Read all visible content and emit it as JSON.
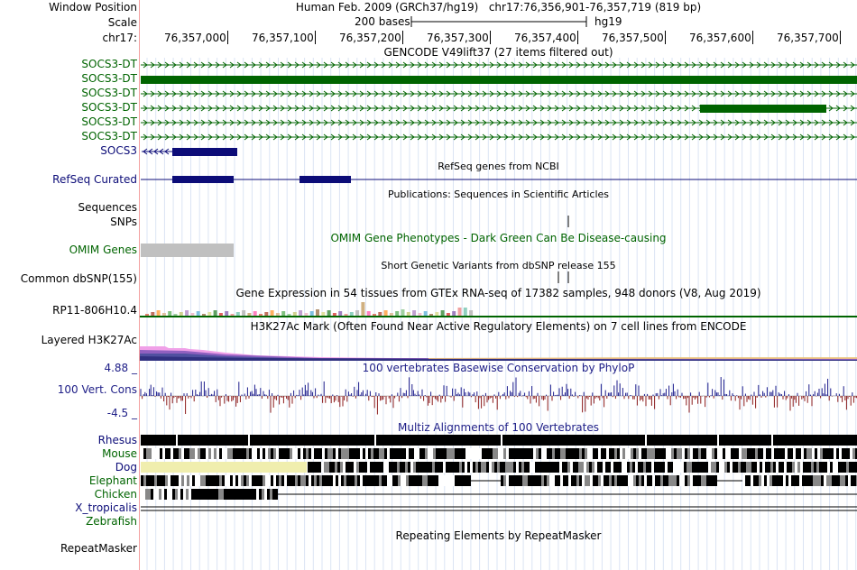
{
  "header": {
    "window_position_label": "Window Position",
    "assembly_text": "Human Feb. 2009 (GRCh37/hg19)",
    "position_text": "chr17:76,356,901-76,357,719 (819 bp)",
    "scale_label": "Scale",
    "scale_text": "200 bases",
    "db_text": "hg19",
    "chrom_label": "chr17:",
    "ticks": [
      "76,357,000",
      "76,357,100",
      "76,357,200",
      "76,357,300",
      "76,357,400",
      "76,357,500",
      "76,357,600",
      "76,357,700"
    ]
  },
  "tracks": {
    "gencode_title": "GENCODE V49lift37 (27 items filtered out)",
    "gencode_items": [
      "SOCS3-DT",
      "SOCS3-DT",
      "SOCS3-DT",
      "SOCS3-DT",
      "SOCS3-DT",
      "SOCS3-DT",
      "SOCS3"
    ],
    "refseq_title": "RefSeq genes from NCBI",
    "refseq_label": "RefSeq Curated",
    "publications_title": "Publications: Sequences in Scientific Articles",
    "sequences_label": "Sequences",
    "snps_label": "SNPs",
    "omim_title": "OMIM Gene Phenotypes - Dark Green Can Be Disease-causing",
    "omim_label": "OMIM Genes",
    "dbsnp_title": "Short Genetic Variants from dbSNP release 155",
    "dbsnp_label": "Common dbSNP(155)",
    "gtex_title": "Gene Expression in 54 tissues from GTEx RNA-seq of 17382 samples, 948 donors (V8, Aug 2019)",
    "gtex_label": "RP11-806H10.4",
    "h3k_title": "H3K27Ac Mark (Often Found Near Active Regulatory Elements) on 7 cell lines from ENCODE",
    "h3k_label": "Layered H3K27Ac",
    "cons_max": "4.88 _",
    "cons_label": "100 Vert. Cons",
    "cons_min": "-4.5 _",
    "cons_title": "100 vertebrates Basewise Conservation by PhyloP",
    "multiz_title": "Multiz Alignments of 100 Vertebrates",
    "species": [
      "Rhesus",
      "Mouse",
      "Dog",
      "Elephant",
      "Chicken",
      "X_tropicalis",
      "Zebrafish"
    ],
    "repeat_title": "Repeating Elements by RepeatMasker",
    "repeat_label": "RepeatMasker"
  },
  "colors": {
    "gencode": "#006400",
    "refseq": "#0c0c78",
    "omim": "#c0c0c0",
    "gtex_line": "#006400",
    "cons_pos": "#1c1c8c",
    "cons_neg": "#8c1c1c"
  }
}
